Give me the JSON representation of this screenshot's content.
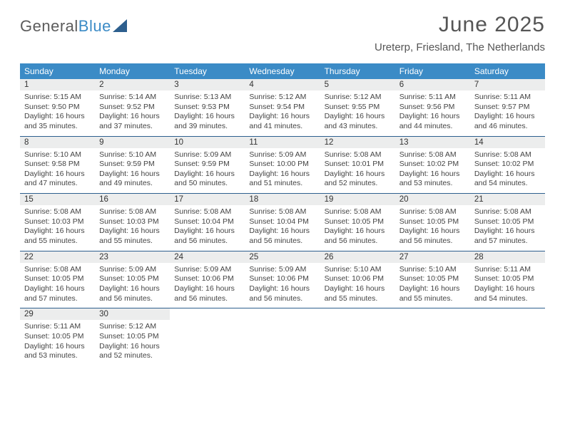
{
  "logo": {
    "word1": "General",
    "word2": "Blue"
  },
  "title": "June 2025",
  "location": "Ureterp, Friesland, The Netherlands",
  "colors": {
    "header_bg": "#3b8bc6",
    "header_text": "#ffffff",
    "daynum_bg": "#eceded",
    "week_border": "#2d5f8e",
    "text": "#444444",
    "title_text": "#555555"
  },
  "fonts": {
    "title_size_pt": 30,
    "location_size_pt": 15,
    "weekday_size_pt": 12,
    "daynum_size_pt": 11.5,
    "body_size_pt": 10.5
  },
  "labels": {
    "sunrise_prefix": "Sunrise: ",
    "sunset_prefix": "Sunset: ",
    "daylight_prefix": "Daylight: "
  },
  "weekdays": [
    "Sunday",
    "Monday",
    "Tuesday",
    "Wednesday",
    "Thursday",
    "Friday",
    "Saturday"
  ],
  "weeks": [
    [
      {
        "n": "1",
        "sr": "5:15 AM",
        "ss": "9:50 PM",
        "dl": "16 hours and 35 minutes."
      },
      {
        "n": "2",
        "sr": "5:14 AM",
        "ss": "9:52 PM",
        "dl": "16 hours and 37 minutes."
      },
      {
        "n": "3",
        "sr": "5:13 AM",
        "ss": "9:53 PM",
        "dl": "16 hours and 39 minutes."
      },
      {
        "n": "4",
        "sr": "5:12 AM",
        "ss": "9:54 PM",
        "dl": "16 hours and 41 minutes."
      },
      {
        "n": "5",
        "sr": "5:12 AM",
        "ss": "9:55 PM",
        "dl": "16 hours and 43 minutes."
      },
      {
        "n": "6",
        "sr": "5:11 AM",
        "ss": "9:56 PM",
        "dl": "16 hours and 44 minutes."
      },
      {
        "n": "7",
        "sr": "5:11 AM",
        "ss": "9:57 PM",
        "dl": "16 hours and 46 minutes."
      }
    ],
    [
      {
        "n": "8",
        "sr": "5:10 AM",
        "ss": "9:58 PM",
        "dl": "16 hours and 47 minutes."
      },
      {
        "n": "9",
        "sr": "5:10 AM",
        "ss": "9:59 PM",
        "dl": "16 hours and 49 minutes."
      },
      {
        "n": "10",
        "sr": "5:09 AM",
        "ss": "9:59 PM",
        "dl": "16 hours and 50 minutes."
      },
      {
        "n": "11",
        "sr": "5:09 AM",
        "ss": "10:00 PM",
        "dl": "16 hours and 51 minutes."
      },
      {
        "n": "12",
        "sr": "5:08 AM",
        "ss": "10:01 PM",
        "dl": "16 hours and 52 minutes."
      },
      {
        "n": "13",
        "sr": "5:08 AM",
        "ss": "10:02 PM",
        "dl": "16 hours and 53 minutes."
      },
      {
        "n": "14",
        "sr": "5:08 AM",
        "ss": "10:02 PM",
        "dl": "16 hours and 54 minutes."
      }
    ],
    [
      {
        "n": "15",
        "sr": "5:08 AM",
        "ss": "10:03 PM",
        "dl": "16 hours and 55 minutes."
      },
      {
        "n": "16",
        "sr": "5:08 AM",
        "ss": "10:03 PM",
        "dl": "16 hours and 55 minutes."
      },
      {
        "n": "17",
        "sr": "5:08 AM",
        "ss": "10:04 PM",
        "dl": "16 hours and 56 minutes."
      },
      {
        "n": "18",
        "sr": "5:08 AM",
        "ss": "10:04 PM",
        "dl": "16 hours and 56 minutes."
      },
      {
        "n": "19",
        "sr": "5:08 AM",
        "ss": "10:05 PM",
        "dl": "16 hours and 56 minutes."
      },
      {
        "n": "20",
        "sr": "5:08 AM",
        "ss": "10:05 PM",
        "dl": "16 hours and 56 minutes."
      },
      {
        "n": "21",
        "sr": "5:08 AM",
        "ss": "10:05 PM",
        "dl": "16 hours and 57 minutes."
      }
    ],
    [
      {
        "n": "22",
        "sr": "5:08 AM",
        "ss": "10:05 PM",
        "dl": "16 hours and 57 minutes."
      },
      {
        "n": "23",
        "sr": "5:09 AM",
        "ss": "10:05 PM",
        "dl": "16 hours and 56 minutes."
      },
      {
        "n": "24",
        "sr": "5:09 AM",
        "ss": "10:06 PM",
        "dl": "16 hours and 56 minutes."
      },
      {
        "n": "25",
        "sr": "5:09 AM",
        "ss": "10:06 PM",
        "dl": "16 hours and 56 minutes."
      },
      {
        "n": "26",
        "sr": "5:10 AM",
        "ss": "10:06 PM",
        "dl": "16 hours and 55 minutes."
      },
      {
        "n": "27",
        "sr": "5:10 AM",
        "ss": "10:05 PM",
        "dl": "16 hours and 55 minutes."
      },
      {
        "n": "28",
        "sr": "5:11 AM",
        "ss": "10:05 PM",
        "dl": "16 hours and 54 minutes."
      }
    ],
    [
      {
        "n": "29",
        "sr": "5:11 AM",
        "ss": "10:05 PM",
        "dl": "16 hours and 53 minutes."
      },
      {
        "n": "30",
        "sr": "5:12 AM",
        "ss": "10:05 PM",
        "dl": "16 hours and 52 minutes."
      },
      null,
      null,
      null,
      null,
      null
    ]
  ]
}
